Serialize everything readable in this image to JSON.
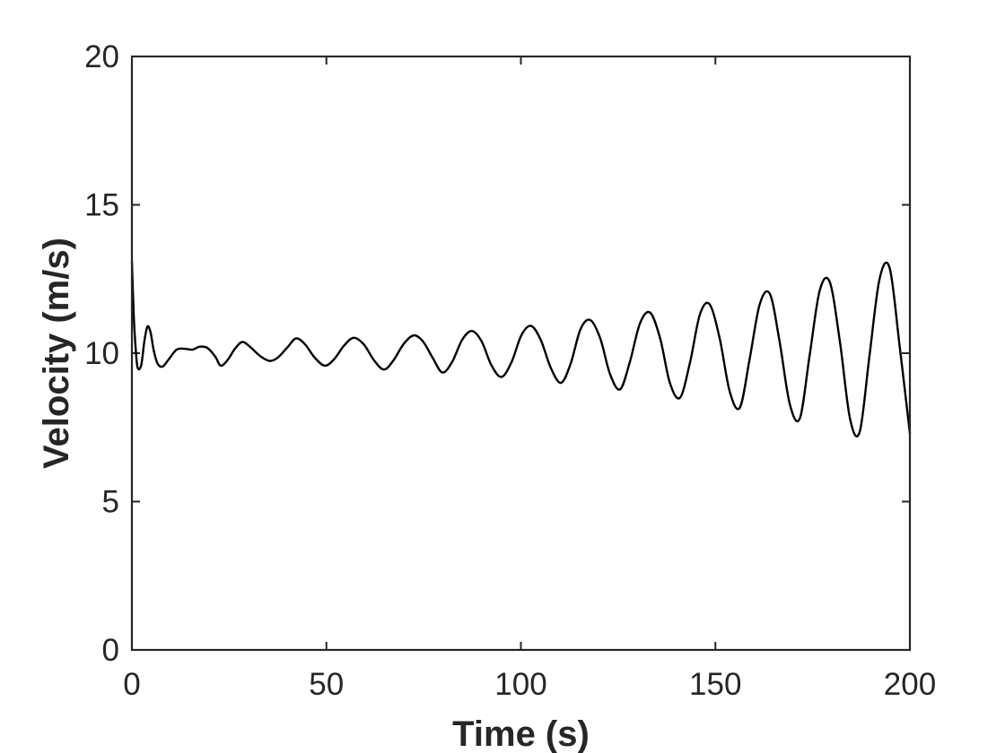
{
  "chart_data": {
    "type": "line",
    "title": "",
    "xlabel": "Time (s)",
    "ylabel": "Velocity (m/s)",
    "xlim": [
      0,
      200
    ],
    "ylim": [
      0,
      20
    ],
    "xticks": [
      0,
      50,
      100,
      150,
      200
    ],
    "yticks": [
      0,
      5,
      10,
      15,
      20
    ],
    "grid": false,
    "box": true,
    "line_color": "#000000",
    "axis_color": "#262626",
    "series": [
      {
        "x": [
          0,
          0.5,
          1,
          1.5,
          2.4,
          3.2,
          4,
          4.8,
          5.6,
          6.6,
          7.9,
          9.5,
          11.5,
          13.5,
          15.5,
          17.5,
          19.5,
          21.5,
          22.8,
          24.5,
          26.5,
          28.4,
          30.5,
          33,
          35.4,
          37.5,
          40,
          42.2,
          44.5,
          47,
          49.6,
          52,
          54.5,
          57,
          59.6,
          62.3,
          64.8,
          67.2,
          69.8,
          72.4,
          74.8,
          77.3,
          79.8,
          82.3,
          84.9,
          87.4,
          89.9,
          92.4,
          95,
          97.6,
          100.1,
          102.6,
          105.1,
          107.7,
          110.3,
          112.8,
          115.3,
          117.8,
          120.4,
          122.9,
          125.5,
          128,
          130.6,
          133.2,
          135.8,
          138.3,
          140.9,
          143.5,
          146,
          148.5,
          151.1,
          153.7,
          156.3,
          158.8,
          161.4,
          164,
          166.5,
          169.1,
          171.7,
          174.2,
          176.8,
          179.4,
          182,
          184.6,
          187.1,
          189.6,
          192.2,
          194.8,
          197.4,
          200
        ],
        "y": [
          13.1,
          11.2,
          10.1,
          9.5,
          9.6,
          10.4,
          10.9,
          10.7,
          10.1,
          9.65,
          9.55,
          9.8,
          10.12,
          10.15,
          10.12,
          10.22,
          10.17,
          9.87,
          9.58,
          9.75,
          10.15,
          10.38,
          10.2,
          9.9,
          9.74,
          9.85,
          10.2,
          10.5,
          10.3,
          9.85,
          9.58,
          9.8,
          10.25,
          10.52,
          10.3,
          9.75,
          9.45,
          9.75,
          10.3,
          10.6,
          10.4,
          9.85,
          9.35,
          9.7,
          10.45,
          10.75,
          10.4,
          9.6,
          9.2,
          9.7,
          10.6,
          10.92,
          10.45,
          9.5,
          9.0,
          9.65,
          10.8,
          11.12,
          10.5,
          9.3,
          8.78,
          9.7,
          11.0,
          11.37,
          10.5,
          9.0,
          8.5,
          9.7,
          11.3,
          11.65,
          10.5,
          8.7,
          8.17,
          9.8,
          11.65,
          12.0,
          10.4,
          8.3,
          7.8,
          9.9,
          12.1,
          12.4,
          10.4,
          7.8,
          7.35,
          9.9,
          12.5,
          12.87,
          10.2,
          7.3
        ]
      }
    ]
  }
}
